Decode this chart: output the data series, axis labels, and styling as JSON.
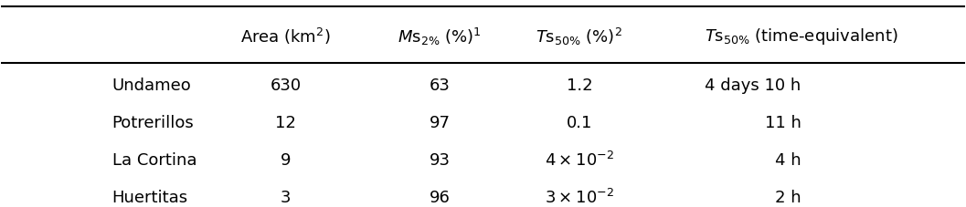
{
  "col_headers": [
    "Area (km$^2$)",
    "$M$s$_{2\\%}$ (%)$^1$",
    "$T$s$_{50\\%}$ (%)$^2$",
    "$T$s$_{50\\%}$ (time-equivalent)"
  ],
  "row_labels": [
    "Undameo",
    "Potrerillos",
    "La Cortina",
    "Huertitas"
  ],
  "col1": [
    "630",
    "12",
    "9",
    "3"
  ],
  "col2": [
    "63",
    "97",
    "93",
    "96"
  ],
  "col3": [
    "1.2",
    "0.1",
    "$4 \\times 10^{-2}$",
    "$3 \\times 10^{-2}$"
  ],
  "col4": [
    "4 days 10 h",
    "11 h",
    "4 h",
    "2 h"
  ],
  "font_size": 13
}
